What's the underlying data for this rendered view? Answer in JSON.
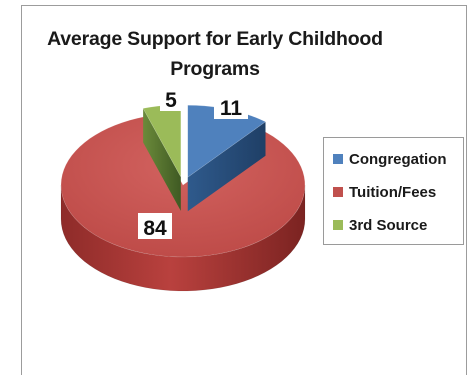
{
  "chart_data": {
    "type": "pie",
    "title": "Average Support for Early Childhood Programs",
    "style": "3d-exploded",
    "legend_position": "right",
    "slices": [
      {
        "name": "Congregation",
        "value": 11,
        "color": "#4f81bd"
      },
      {
        "name": "Tuition/Fees",
        "value": 84,
        "color": "#c0504d"
      },
      {
        "name": "3rd Source",
        "value": 5,
        "color": "#9bbb59"
      }
    ]
  }
}
